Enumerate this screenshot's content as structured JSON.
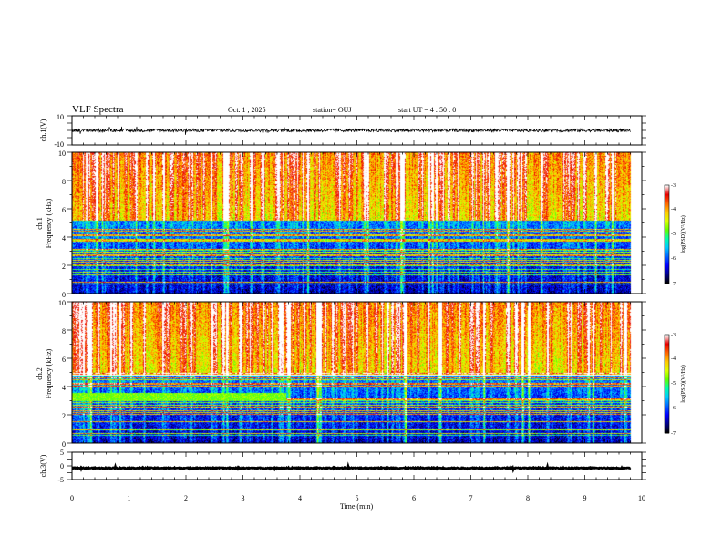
{
  "chart_data": {
    "type": "heatmap",
    "title": "VLF Spectra",
    "date": "Oct. 1  , 2025",
    "station": "station= OUJ",
    "start_ut": "start  UT  =   4  : 50 : 0",
    "x_axis": {
      "label": "Time  (min)",
      "range": [
        0,
        10
      ],
      "ticks": [
        "0",
        "1",
        "2",
        "3",
        "4",
        "5",
        "6",
        "7",
        "8",
        "9",
        "10"
      ]
    },
    "panels": [
      {
        "id": "ch1-waveform",
        "type": "line",
        "ylabel": "ch.1(V)",
        "ylim": [
          -10,
          10
        ],
        "yticks": [
          "10",
          "-10"
        ],
        "data_end_min": 9.8,
        "offset_v": 0
      },
      {
        "id": "ch1-spectrogram",
        "type": "heatmap",
        "ylabel_line1": "ch.1",
        "ylabel_line2": "Frequency  (kHz)",
        "ylim": [
          0,
          10
        ],
        "yticks": [
          "10",
          "8",
          "6",
          "4",
          "2",
          "0"
        ],
        "data_end_min": 9.8,
        "quiet_band_top_khz": 5.2,
        "hum_band_khz": [
          0.5,
          4.8
        ],
        "colorbar": {
          "label": "log(PSD)(V²/Hz)",
          "range": [
            -7,
            -3
          ],
          "ticks": [
            "-3",
            "-4",
            "-5",
            "-6",
            "-7"
          ]
        }
      },
      {
        "id": "ch2-spectrogram",
        "type": "heatmap",
        "ylabel_line1": "ch.2",
        "ylabel_line2": "Frequency  (kHz)",
        "ylim": [
          0,
          10
        ],
        "yticks": [
          "10",
          "8",
          "6",
          "4",
          "2",
          "0"
        ],
        "data_end_min": 9.8,
        "quiet_band_top_khz": 4.8,
        "green_band_khz": [
          3.0,
          3.6
        ],
        "green_band_end_min": 3.75,
        "colorbar": {
          "label": "log(PSD)(V²/Hz)",
          "range": [
            -7,
            -3
          ],
          "ticks": [
            "-3",
            "-4",
            "-5",
            "-6",
            "-7"
          ]
        }
      },
      {
        "id": "ch3-waveform",
        "type": "line",
        "ylabel": "ch.3(V)",
        "ylim": [
          -5,
          5
        ],
        "yticks": [
          "5",
          "0",
          "-5"
        ],
        "data_end_min": 9.8,
        "offset_v": -0.8
      }
    ],
    "colormap": [
      "#000000",
      "#00008c",
      "#0000ff",
      "#0064ff",
      "#00c8ff",
      "#00ffaa",
      "#64ff00",
      "#dcff00",
      "#ffc800",
      "#ff6400",
      "#e60000",
      "#ffffff"
    ]
  }
}
